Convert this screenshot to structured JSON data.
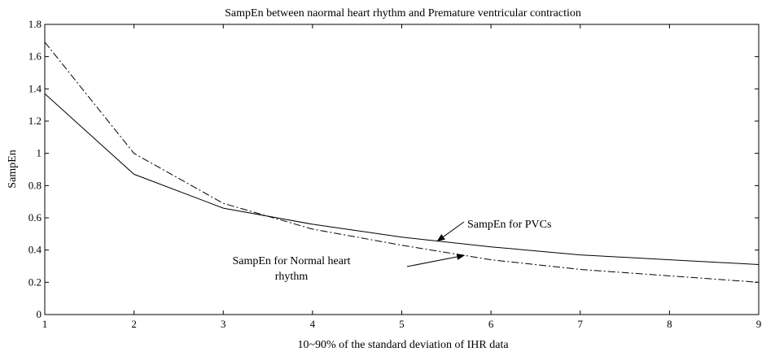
{
  "chart_data": {
    "type": "line",
    "title": "SampEn between naormal heart rhythm and Premature ventricular contraction",
    "xlabel": "10~90% of the standard deviation of IHR data",
    "ylabel": "SampEn",
    "xlim": [
      1,
      9
    ],
    "ylim": [
      0,
      1.8
    ],
    "xticks": [
      1,
      2,
      3,
      4,
      5,
      6,
      7,
      8,
      9
    ],
    "yticks": [
      0,
      0.2,
      0.4,
      0.6,
      0.8,
      1,
      1.2,
      1.4,
      1.6,
      1.8
    ],
    "ytick_labels": [
      "0",
      "0.2",
      "0.4",
      "0.6",
      "0.8",
      "1",
      "1.2",
      "1.4",
      "1.6",
      "1.8"
    ],
    "grid": false,
    "x": [
      1,
      2,
      3,
      4,
      5,
      6,
      7,
      8,
      9
    ],
    "series": [
      {
        "name": "SampEn for PVCs",
        "values": [
          1.37,
          0.87,
          0.66,
          0.56,
          0.48,
          0.42,
          0.37,
          0.34,
          0.31
        ],
        "style": "solid"
      },
      {
        "name": "SampEn for Normal heart rhythm",
        "values": [
          1.69,
          1.0,
          0.69,
          0.53,
          0.43,
          0.34,
          0.28,
          0.24,
          0.2
        ],
        "style": "dashdot"
      }
    ],
    "annotations": [
      {
        "lines": [
          "SampEn for PVCs"
        ],
        "target_series": 0,
        "target_x": 5.4
      },
      {
        "lines": [
          "SampEn for Normal heart",
          "rhythm"
        ],
        "target_series": 1,
        "target_x": 5.7
      }
    ]
  }
}
